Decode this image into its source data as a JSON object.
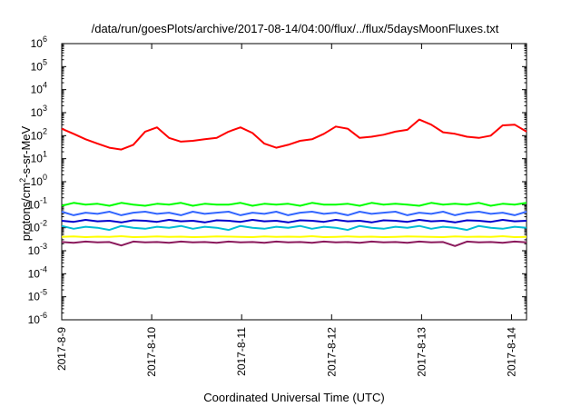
{
  "chart_data": {
    "type": "line",
    "title": "/data/run/goesPlots/archive/2017-08-14/04:00/flux/../flux/5daysMoonFluxes.txt",
    "xlabel": "Coordinated Universal Time (UTC)",
    "ylabel_parts": [
      "protons/cm",
      "2",
      "-s-sr-MeV"
    ],
    "y_scale": "log",
    "ylim": [
      1e-06,
      1000000.0
    ],
    "y_ticks": [
      {
        "base": "10",
        "exp": "-6",
        "value": 1e-06
      },
      {
        "base": "10",
        "exp": "-5",
        "value": 1e-05
      },
      {
        "base": "10",
        "exp": "-4",
        "value": 0.0001
      },
      {
        "base": "10",
        "exp": "-3",
        "value": 0.001
      },
      {
        "base": "10",
        "exp": "-2",
        "value": 0.01
      },
      {
        "base": "10",
        "exp": "-1",
        "value": 0.1
      },
      {
        "base": "10",
        "exp": "0",
        "value": 1
      },
      {
        "base": "10",
        "exp": "1",
        "value": 10
      },
      {
        "base": "10",
        "exp": "2",
        "value": 100
      },
      {
        "base": "10",
        "exp": "3",
        "value": 1000
      },
      {
        "base": "10",
        "exp": "4",
        "value": 10000
      },
      {
        "base": "10",
        "exp": "5",
        "value": 100000
      },
      {
        "base": "10",
        "exp": "6",
        "value": 1000000
      }
    ],
    "xlim": [
      "2017-08-09",
      "2017-08-14T04:00"
    ],
    "x_ticks": [
      "2017-8-9",
      "2017-8-10",
      "2017-8-11",
      "2017-8-12",
      "2017-8-13",
      "2017-8-14"
    ],
    "grid": false,
    "legend": "none",
    "series": [
      {
        "color": "#ff0000",
        "y": [
          200,
          120,
          70,
          45,
          30,
          25,
          40,
          150,
          230,
          80,
          55,
          60,
          70,
          80,
          150,
          230,
          130,
          45,
          30,
          40,
          60,
          70,
          120,
          250,
          200,
          80,
          90,
          110,
          150,
          180,
          500,
          300,
          140,
          120,
          90,
          80,
          100,
          280,
          300,
          150
        ]
      },
      {
        "color": "#00ff00",
        "y": [
          0.09,
          0.12,
          0.1,
          0.11,
          0.09,
          0.12,
          0.1,
          0.09,
          0.11,
          0.1,
          0.12,
          0.09,
          0.11,
          0.1,
          0.1,
          0.12,
          0.09,
          0.11,
          0.1,
          0.11,
          0.09,
          0.12,
          0.1,
          0.1,
          0.11,
          0.09,
          0.12,
          0.1,
          0.11,
          0.1,
          0.09,
          0.12,
          0.1,
          0.11,
          0.1,
          0.12,
          0.09,
          0.11,
          0.1,
          0.12
        ]
      },
      {
        "color": "#3366ff",
        "y": [
          0.05,
          0.035,
          0.045,
          0.04,
          0.05,
          0.035,
          0.045,
          0.05,
          0.04,
          0.045,
          0.035,
          0.05,
          0.04,
          0.045,
          0.05,
          0.035,
          0.045,
          0.04,
          0.05,
          0.035,
          0.045,
          0.05,
          0.04,
          0.045,
          0.035,
          0.05,
          0.04,
          0.045,
          0.05,
          0.035,
          0.045,
          0.04,
          0.05,
          0.035,
          0.045,
          0.05,
          0.04,
          0.045,
          0.035,
          0.05
        ]
      },
      {
        "color": "#00bcd4",
        "y": [
          0.012,
          0.009,
          0.011,
          0.01,
          0.008,
          0.012,
          0.01,
          0.009,
          0.011,
          0.01,
          0.012,
          0.009,
          0.011,
          0.01,
          0.008,
          0.012,
          0.01,
          0.009,
          0.011,
          0.01,
          0.012,
          0.009,
          0.011,
          0.01,
          0.008,
          0.012,
          0.01,
          0.009,
          0.011,
          0.01,
          0.012,
          0.009,
          0.011,
          0.01,
          0.008,
          0.012,
          0.01,
          0.009,
          0.011,
          0.01
        ]
      },
      {
        "color": "#0000cc",
        "y": [
          0.02,
          0.018,
          0.022,
          0.019,
          0.02,
          0.017,
          0.021,
          0.02,
          0.018,
          0.022,
          0.019,
          0.02,
          0.017,
          0.021,
          0.02,
          0.018,
          0.022,
          0.019,
          0.02,
          0.017,
          0.021,
          0.02,
          0.018,
          0.022,
          0.019,
          0.02,
          0.017,
          0.021,
          0.02,
          0.018,
          0.022,
          0.019,
          0.02,
          0.017,
          0.021,
          0.02,
          0.018,
          0.022,
          0.019,
          0.02
        ]
      },
      {
        "color": "#ffff00",
        "y": [
          0.004,
          0.0042,
          0.0039,
          0.0041,
          0.004,
          0.0043,
          0.0039,
          0.004,
          0.0042,
          0.004,
          0.0041,
          0.0039,
          0.004,
          0.0042,
          0.0041,
          0.004,
          0.0039,
          0.0042,
          0.004,
          0.0041,
          0.004,
          0.0043,
          0.0039,
          0.004,
          0.0042,
          0.004,
          0.0041,
          0.0039,
          0.004,
          0.0042,
          0.0041,
          0.004,
          0.0039,
          0.0042,
          0.004,
          0.0041,
          0.004,
          0.0043,
          0.0039,
          0.004
        ]
      },
      {
        "color": "#8b1a5c",
        "y": [
          0.0024,
          0.0022,
          0.0025,
          0.0023,
          0.0024,
          0.0017,
          0.0025,
          0.0023,
          0.0024,
          0.0022,
          0.0025,
          0.0023,
          0.0024,
          0.0022,
          0.0025,
          0.0023,
          0.0024,
          0.0022,
          0.0025,
          0.0023,
          0.0024,
          0.0022,
          0.0025,
          0.0023,
          0.0024,
          0.0022,
          0.0025,
          0.0023,
          0.0024,
          0.0022,
          0.0025,
          0.0023,
          0.0024,
          0.0016,
          0.0025,
          0.0023,
          0.0024,
          0.0022,
          0.0025,
          0.0023
        ]
      }
    ]
  }
}
